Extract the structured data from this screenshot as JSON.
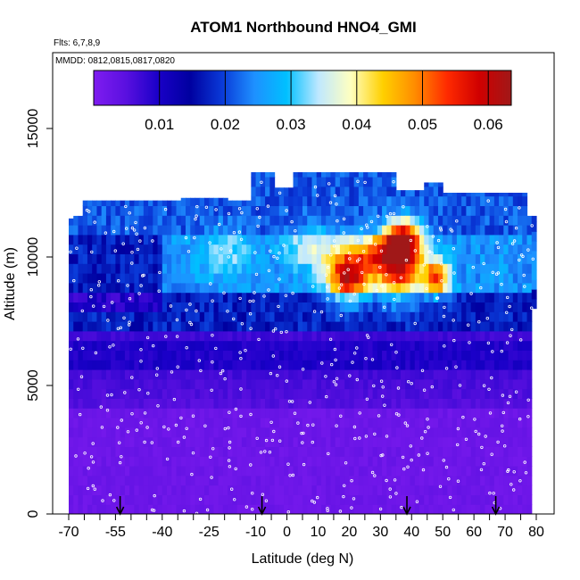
{
  "chart_data": {
    "type": "heatmap",
    "title": "ATOM1 Northbound HNO4_GMI",
    "annotations": [
      "Flts: 6,7,8,9",
      "MMDD: 0812,0815,0817,0820"
    ],
    "xlabel": "Latitude (deg N)",
    "ylabel": "Altitude (m)",
    "xlim": [
      -70,
      80
    ],
    "ylim": [
      0,
      17500
    ],
    "x_ticks": [
      -70,
      -55,
      -40,
      -25,
      -10,
      0,
      10,
      20,
      30,
      40,
      50,
      60,
      70,
      80
    ],
    "x_tick_labels": [
      "-70",
      "-55",
      "-40",
      "-25",
      "-10",
      "0",
      "10",
      "20",
      "30",
      "40",
      "50",
      "60",
      "70",
      "80"
    ],
    "x_minor_ticks": [
      -65,
      -60,
      -50,
      -45,
      -35,
      -30,
      -20,
      -15,
      -5,
      5,
      15,
      25,
      35,
      45,
      55,
      65,
      75
    ],
    "y_ticks": [
      0,
      5000,
      10000,
      15000
    ],
    "y_tick_labels": [
      "0",
      "5000",
      "10000",
      "15000"
    ],
    "colorbar": {
      "range": [
        0,
        0.0635
      ],
      "ticks": [
        0.01,
        0.02,
        0.03,
        0.04,
        0.05,
        0.06
      ],
      "tick_labels": [
        "0.01",
        "0.02",
        "0.03",
        "0.04",
        "0.05",
        "0.06"
      ],
      "colors": [
        "#7f1cf0",
        "#5a10e0",
        "#1a00c8",
        "#0000a0",
        "#0a3ad8",
        "#1e90ff",
        "#00c0ff",
        "#bfe8ff",
        "#ffffc0",
        "#ffd000",
        "#ff8c00",
        "#ff2a00",
        "#d00000",
        "#a01818"
      ]
    },
    "grid": false,
    "flight_markers_lat": [
      -53.5,
      -8,
      38.5,
      67
    ]
  }
}
